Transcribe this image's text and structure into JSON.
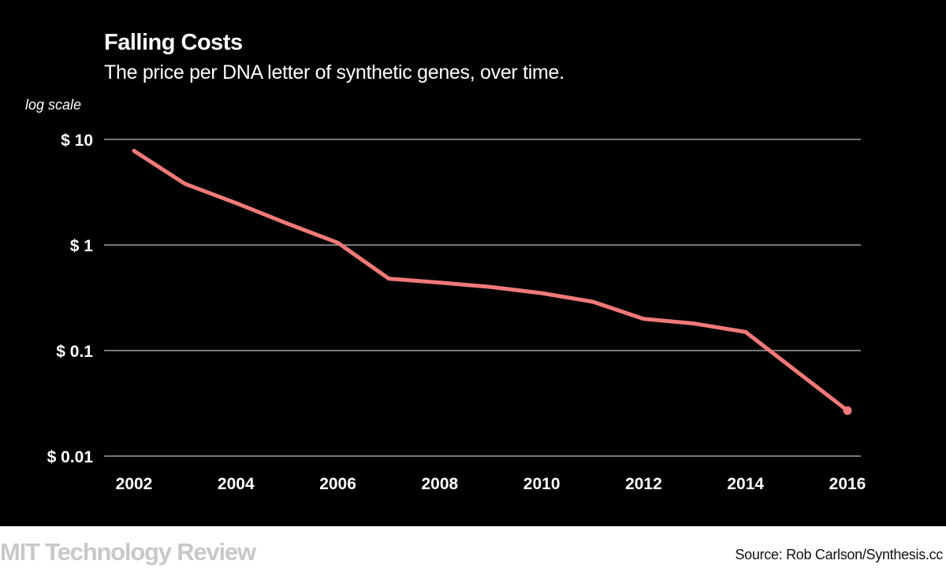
{
  "chart_data": {
    "type": "line",
    "title": "Falling Costs",
    "subtitle": "The price per DNA letter of synthetic genes, over time.",
    "yscale": "log",
    "yscale_note": "log scale",
    "ylim": [
      0.01,
      10
    ],
    "y_ticks": [
      {
        "value": 10,
        "label": "$ 10"
      },
      {
        "value": 1,
        "label": "$ 1"
      },
      {
        "value": 0.1,
        "label": "$ 0.1"
      },
      {
        "value": 0.01,
        "label": "$ 0.01"
      }
    ],
    "xlim": [
      2002,
      2016
    ],
    "x_ticks": [
      2002,
      2004,
      2006,
      2008,
      2010,
      2012,
      2014,
      2016
    ],
    "x_tick_labels": [
      "2002",
      "2004",
      "2006",
      "2008",
      "2010",
      "2012",
      "2014",
      "2016"
    ],
    "grid": "horizontal",
    "series": [
      {
        "color": "#f07a78",
        "x": [
          2002,
          2003,
          2004,
          2005,
          2006,
          2007,
          2008,
          2009,
          2010,
          2011,
          2012,
          2013,
          2014,
          2016
        ],
        "values": [
          7.8,
          3.8,
          2.5,
          1.6,
          1.05,
          0.48,
          0.44,
          0.4,
          0.35,
          0.29,
          0.2,
          0.18,
          0.15,
          0.027
        ],
        "end_marker": true
      }
    ]
  },
  "footer": {
    "brand": "MIT Technology Review",
    "source": "Source: Rob Carlson/Synthesis.cc"
  },
  "colors": {
    "background": "#000000",
    "text": "#ffffff",
    "grid": "#bfbfbf",
    "line": "#f07a78"
  }
}
